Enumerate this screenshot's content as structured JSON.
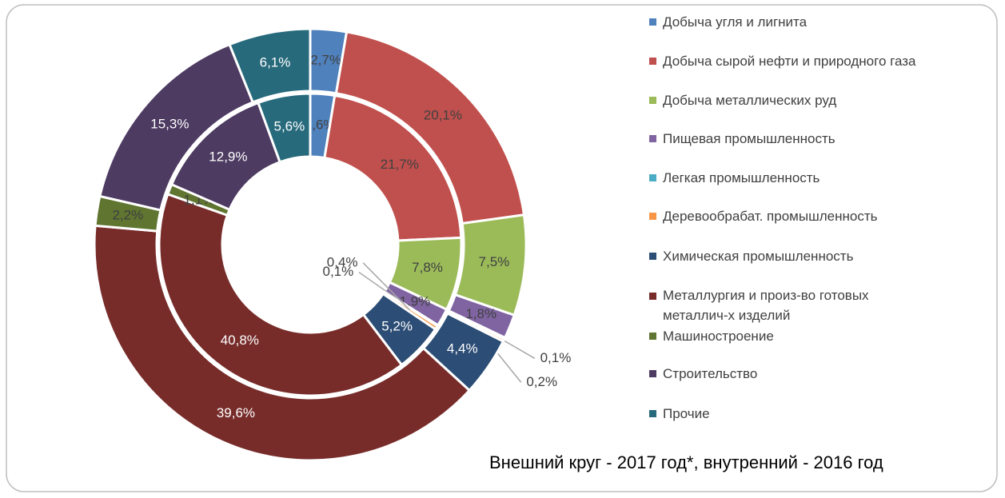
{
  "chart_data": {
    "type": "doughnut",
    "categories": [
      "Добыча угля и лигнита",
      "Добыча сырой нефти и природного газа",
      "Добыча металлических руд",
      "Пищевая промышленность",
      "Легкая промышленность",
      "Деревообрабат. промышленность",
      "Химическая промышленность",
      "Металлургия и произ-во готовых металлич-х изделий",
      "Машиностроение",
      "Строительство",
      "Прочие"
    ],
    "colors": [
      "#4f81bd",
      "#c0504d",
      "#9bbb59",
      "#8064a2",
      "#4bacc6",
      "#f79646",
      "#2c4d75",
      "#772c2a",
      "#5f7530",
      "#4d3b62",
      "#276a7c"
    ],
    "series": [
      {
        "values": [
          2.7,
          20.1,
          7.5,
          1.8,
          0.1,
          0.2,
          4.4,
          39.6,
          2.2,
          15.3,
          6.1
        ],
        "value_labels": [
          "2,7%",
          "20,1%",
          "7,5%",
          "1,8%",
          "0,1%",
          "0,2%",
          "4,4%",
          "39,6%",
          "2,2%",
          "15,3%",
          "6,1%"
        ]
      },
      {
        "values": [
          2.6,
          21.7,
          7.8,
          1.9,
          0.1,
          0.4,
          5.2,
          40.8,
          1.1,
          12.9,
          5.6
        ],
        "value_labels": [
          "2,6%",
          "21,7%",
          "7,8%",
          "1,9%",
          "0,1%",
          "0,4%",
          "5,2%",
          "40,8%",
          "1,1%",
          "12,9%",
          "5,6%"
        ]
      }
    ],
    "annotation": "Внешний круг - 2017 год*, внутренний - 2016 год"
  }
}
